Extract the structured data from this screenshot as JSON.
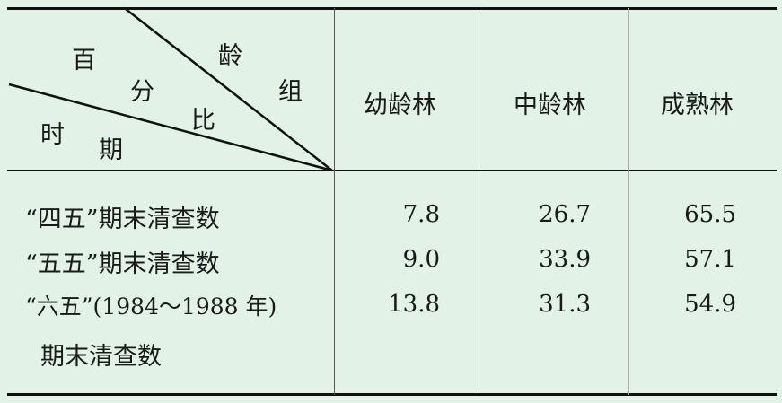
{
  "header": {
    "corner": {
      "top_right": [
        "龄",
        "组"
      ],
      "middle": [
        "百",
        "分",
        "比"
      ],
      "bottom_left": [
        "时",
        "期"
      ]
    },
    "columns": [
      "幼龄林",
      "中龄林",
      "成熟林"
    ]
  },
  "rows": [
    {
      "label": "“四五”期末清查数",
      "values": [
        "7.8",
        "26.7",
        "65.5"
      ]
    },
    {
      "label": "“五五”期末清查数",
      "values": [
        "9.0",
        "33.9",
        "57.1"
      ]
    },
    {
      "label": "“六五”(1984～1988 年)",
      "label2": "期末清查数",
      "values": [
        "13.8",
        "31.3",
        "54.9"
      ]
    }
  ]
}
